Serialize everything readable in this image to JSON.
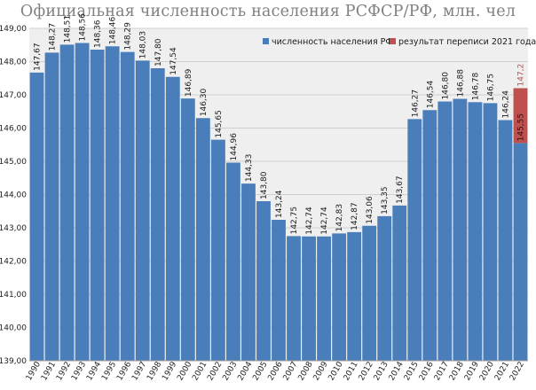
{
  "chart_data": {
    "type": "bar",
    "title": "Официальная  численность населения РСФСР/РФ, млн. чел",
    "xlabel": "",
    "ylabel": "",
    "ylim": [
      139,
      149
    ],
    "yticks": [
      "139,00",
      "140,00",
      "141,00",
      "142,00",
      "143,00",
      "144,00",
      "145,00",
      "146,00",
      "147,00",
      "148,00",
      "149,00"
    ],
    "grid": true,
    "legend_position": "top-right",
    "categories": [
      "1990",
      "1991",
      "1992",
      "1993",
      "1994",
      "1995",
      "1996",
      "1997",
      "1998",
      "1999",
      "2000",
      "2001",
      "2002",
      "2003",
      "2004",
      "2005",
      "2006",
      "2007",
      "2008",
      "2009",
      "2010",
      "2011",
      "2012",
      "2013",
      "2014",
      "2015",
      "2016",
      "2017",
      "2018",
      "2019",
      "2020",
      "2021",
      "2022"
    ],
    "series": [
      {
        "name": "численность населения РФ",
        "color": "#4a7ebb",
        "values": [
          147.67,
          148.27,
          148.51,
          148.56,
          148.36,
          148.46,
          148.29,
          148.03,
          147.8,
          147.54,
          146.89,
          146.3,
          145.65,
          144.96,
          144.33,
          143.8,
          143.24,
          142.75,
          142.74,
          142.74,
          142.83,
          142.87,
          143.06,
          143.35,
          143.67,
          146.27,
          146.54,
          146.8,
          146.88,
          146.78,
          146.75,
          146.24,
          145.55
        ],
        "labels": [
          "147,67",
          "148,27",
          "148,51",
          "148,56",
          "148,36",
          "148,46",
          "148,29",
          "148,03",
          "147,80",
          "147,54",
          "146,89",
          "146,30",
          "145,65",
          "144,96",
          "144,33",
          "143,80",
          "143,24",
          "142,75",
          "142,74",
          "142,74",
          "142,83",
          "142,87",
          "143,06",
          "143,35",
          "143,67",
          "146,27",
          "146,54",
          "146,80",
          "146,88",
          "146,78",
          "146,75",
          "146,24",
          "145,55"
        ]
      },
      {
        "name": "результат переписи 2021 года",
        "color": "#c0504d",
        "category": "2022",
        "base": 145.55,
        "value": 147.2,
        "label": "147,2"
      }
    ]
  }
}
